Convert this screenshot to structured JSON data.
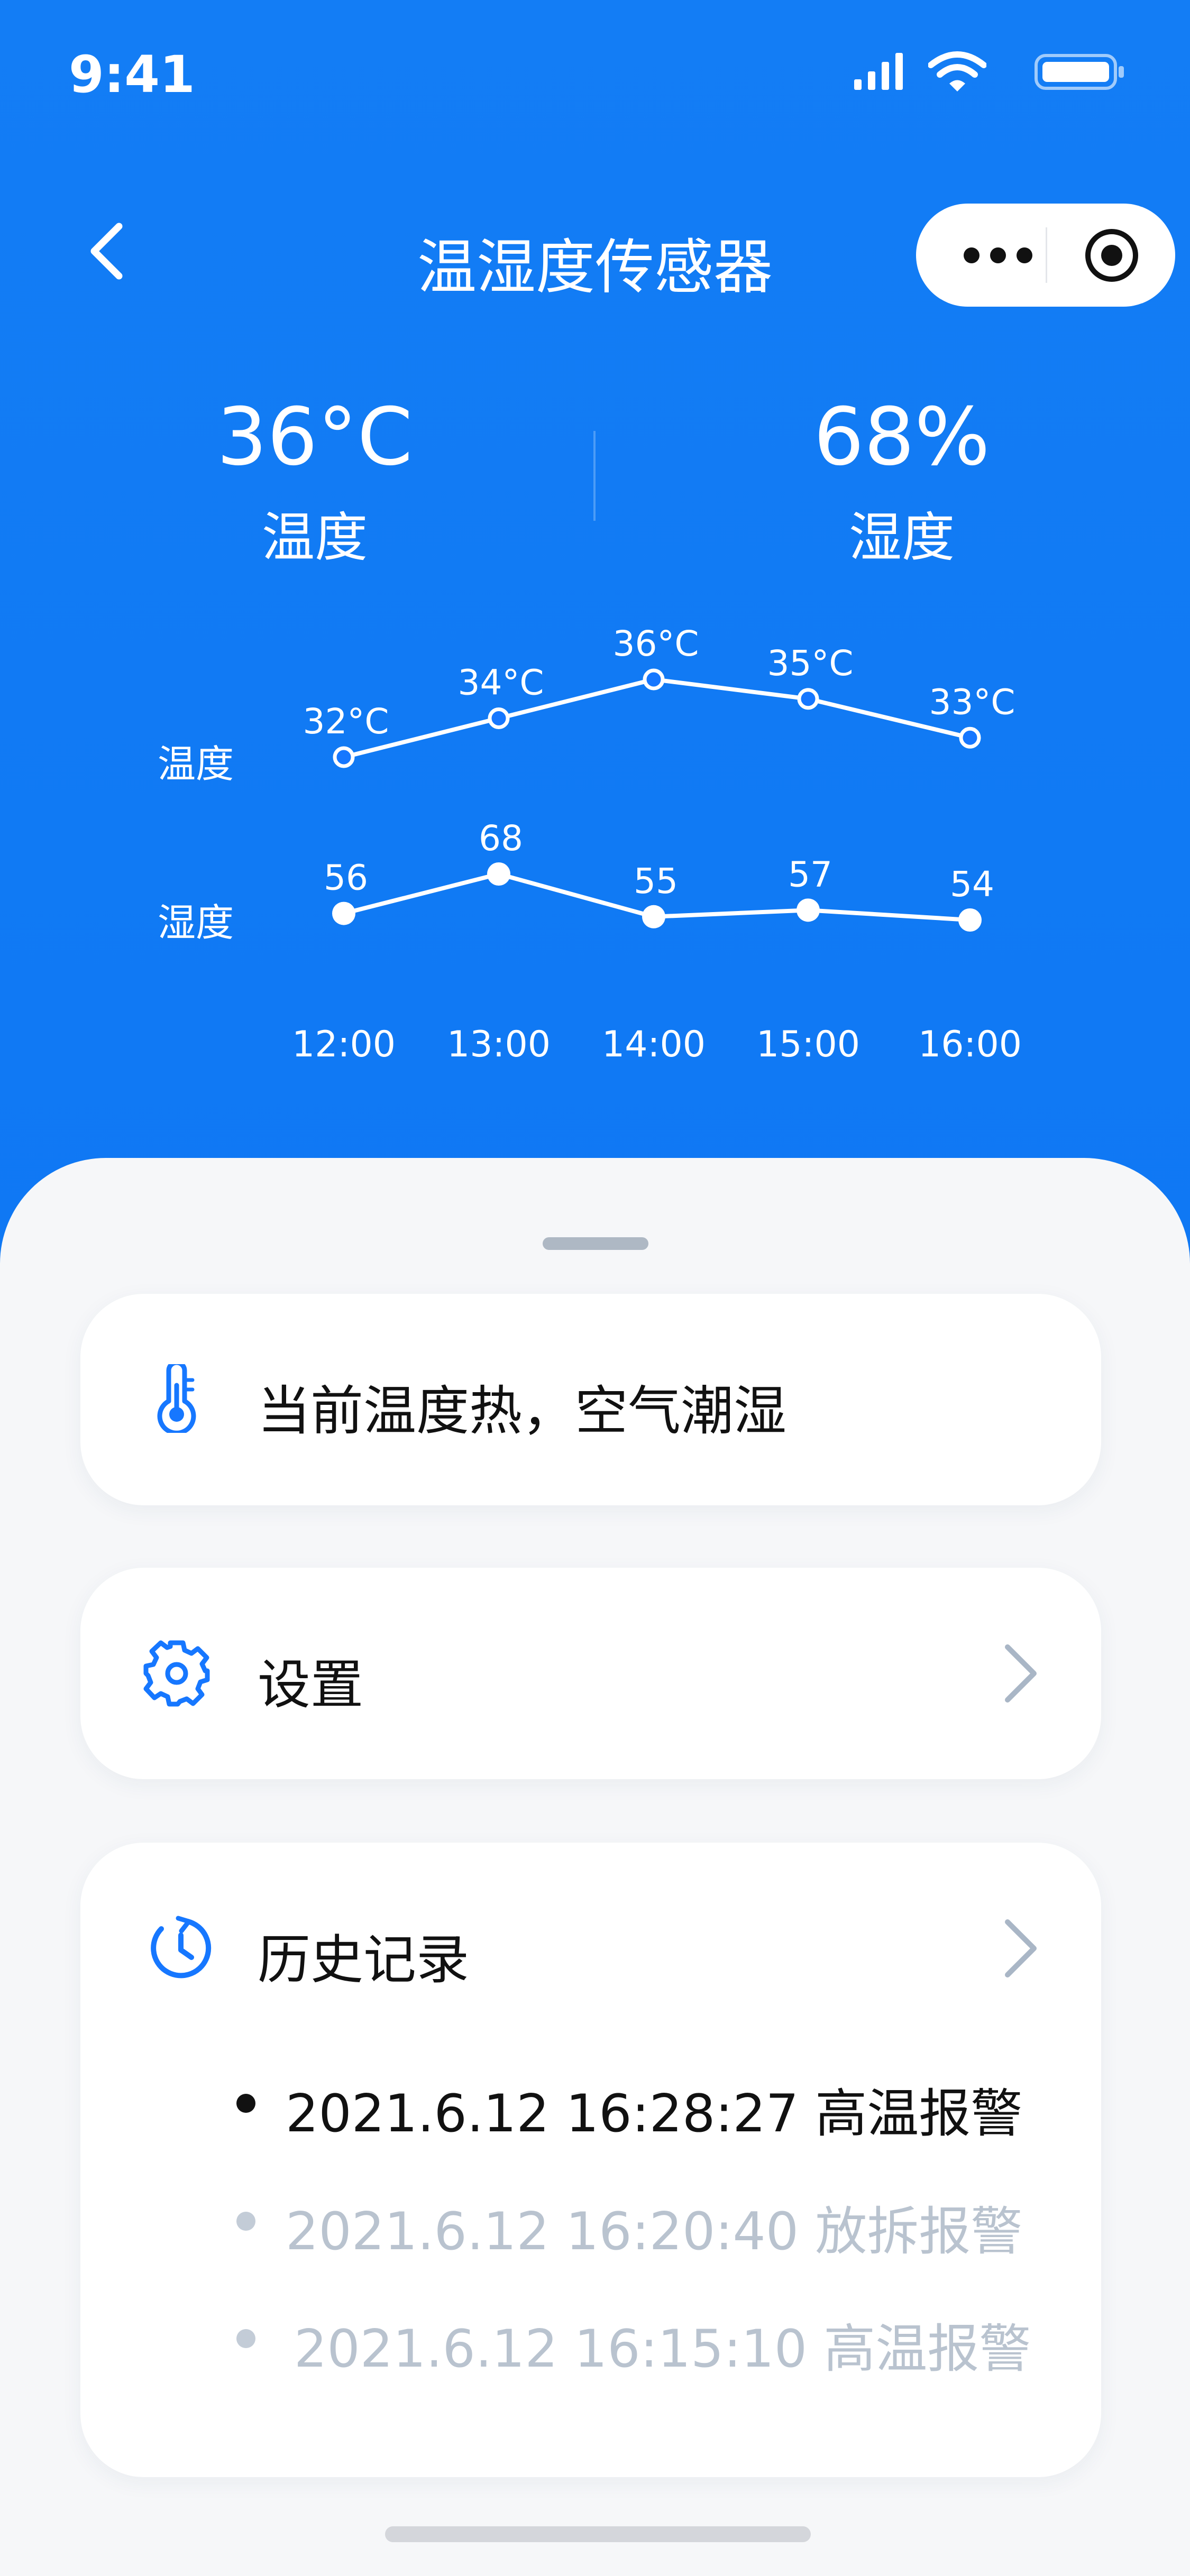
{
  "status_bar": {
    "time": "9:41"
  },
  "nav": {
    "title": "温湿度传感器"
  },
  "summary": {
    "temperature": {
      "value": "36°C",
      "label": "温度"
    },
    "humidity": {
      "value": "68%",
      "label": "湿度"
    }
  },
  "chart_data": [
    {
      "type": "line",
      "categories": [
        "12:00",
        "13:00",
        "14:00",
        "15:00",
        "16:00"
      ],
      "series": [
        {
          "name": "温度",
          "values": [
            32,
            34,
            36,
            35,
            33
          ],
          "labels": [
            "32°C",
            "34°C",
            "36°C",
            "35°C",
            "33°C"
          ],
          "marker": "hollow"
        }
      ]
    },
    {
      "type": "line",
      "categories": [
        "12:00",
        "13:00",
        "14:00",
        "15:00",
        "16:00"
      ],
      "series": [
        {
          "name": "湿度",
          "values": [
            56,
            68,
            55,
            57,
            54
          ],
          "labels": [
            "56",
            "68",
            "55",
            "57",
            "54"
          ],
          "marker": "filled"
        }
      ]
    }
  ],
  "status_card": {
    "text": "当前温度热，空气潮湿",
    "icon": "thermometer-icon"
  },
  "settings_card": {
    "text": "设置",
    "icon": "gear-icon"
  },
  "history_card": {
    "title": "历史记录",
    "icon": "history-clock-icon",
    "items": [
      {
        "text": "2021.6.12 16:28:27 高温报警",
        "active": true
      },
      {
        "text": "2021.6.12 16:20:40 放拆报警",
        "active": false
      },
      {
        "text": "2021.6.12 16:15:10 高温报警",
        "active": false
      }
    ]
  },
  "colors": {
    "primary": "#0b73f2",
    "sheet": "#f6f7f9",
    "muted": "#b9c3cf",
    "chevron": "#a9b6c6"
  }
}
